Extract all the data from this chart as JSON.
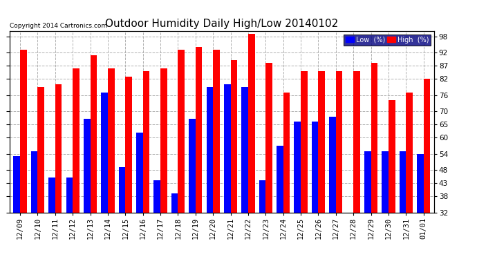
{
  "title": "Outdoor Humidity Daily High/Low 20140102",
  "copyright_text": "Copyright 2014 Cartronics.com",
  "dates": [
    "12/09",
    "12/10",
    "12/11",
    "12/12",
    "12/13",
    "12/14",
    "12/15",
    "12/16",
    "12/17",
    "12/18",
    "12/19",
    "12/20",
    "12/21",
    "12/22",
    "12/23",
    "12/24",
    "12/25",
    "12/26",
    "12/27",
    "12/28",
    "12/29",
    "12/30",
    "12/31",
    "01/01"
  ],
  "high_values": [
    93,
    79,
    80,
    86,
    91,
    86,
    83,
    85,
    86,
    93,
    94,
    93,
    89,
    99,
    88,
    77,
    85,
    85,
    85,
    85,
    88,
    74,
    77,
    82
  ],
  "low_values": [
    53,
    55,
    45,
    45,
    67,
    77,
    49,
    62,
    44,
    39,
    67,
    79,
    80,
    79,
    44,
    57,
    66,
    66,
    68,
    32,
    55,
    55,
    55,
    54
  ],
  "high_color": "#ff0000",
  "low_color": "#0000ff",
  "bg_color": "#ffffff",
  "plot_bg_color": "#ffffff",
  "grid_color": "#b0b0b0",
  "ymin": 32,
  "ymax": 100,
  "yticks": [
    32,
    38,
    43,
    48,
    54,
    60,
    65,
    70,
    76,
    82,
    87,
    92,
    98
  ],
  "bar_width": 0.38,
  "title_fontsize": 11,
  "tick_fontsize": 7.5,
  "legend_low_label": "Low  (%)",
  "legend_high_label": "High  (%)"
}
